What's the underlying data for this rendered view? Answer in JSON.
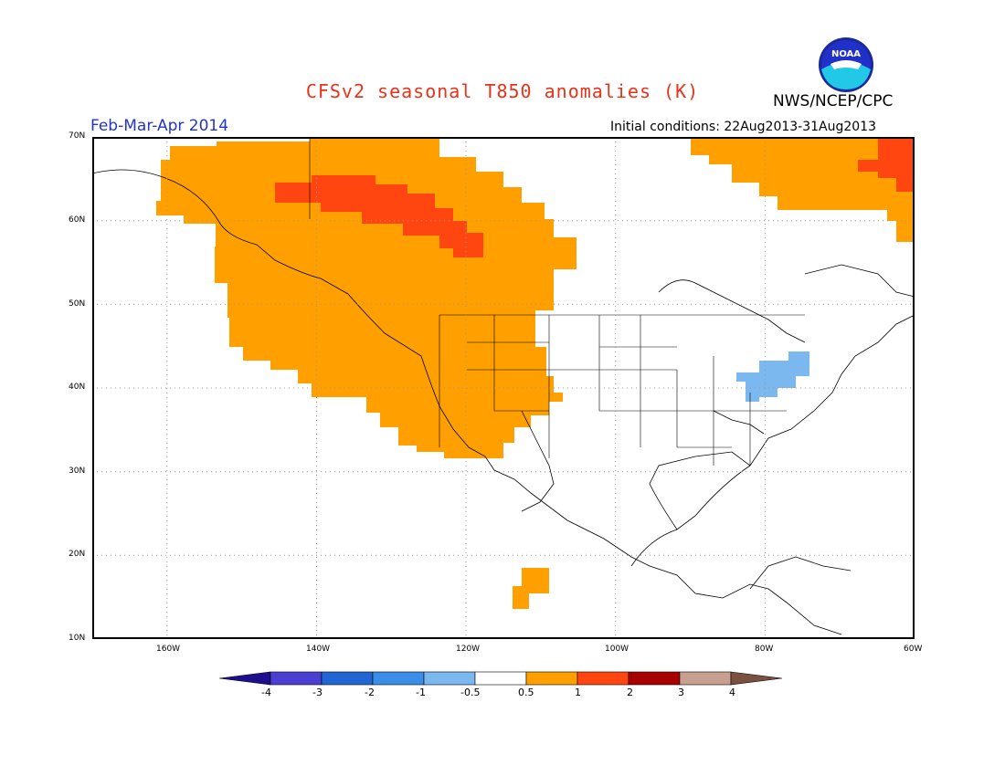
{
  "title": "CFSv2 seasonal T850 anomalies (K)",
  "agency": "NWS/NCEP/CPC",
  "period": "Feb-Mar-Apr 2014",
  "initial_conditions": "Initial conditions: 22Aug2013-31Aug2013",
  "logo": {
    "icon": "noaa-logo-icon",
    "text": "NOAA"
  },
  "lat_ticks": [
    "70N",
    "60N",
    "50N",
    "40N",
    "30N",
    "20N",
    "10N"
  ],
  "lon_ticks": [
    "160W",
    "140W",
    "120W",
    "100W",
    "80W",
    "60W"
  ],
  "colorbar": {
    "colors": [
      "#1e0f8c",
      "#4a3fd0",
      "#2266d4",
      "#3a8ee8",
      "#7cb8f0",
      "#ffffff",
      "#ffa000",
      "#ff4610",
      "#a80000",
      "#c8a090",
      "#7a5040"
    ],
    "labels": [
      "-4",
      "-3",
      "-2",
      "-1",
      "-0.5",
      "0.5",
      "1",
      "2",
      "3",
      "4"
    ]
  },
  "colors": {
    "title": "#e8321a",
    "period": "#2233cc",
    "warm1": "#ffa000",
    "warm2": "#ff4610",
    "cool1": "#7cb8f0",
    "grid": "#999999"
  }
}
